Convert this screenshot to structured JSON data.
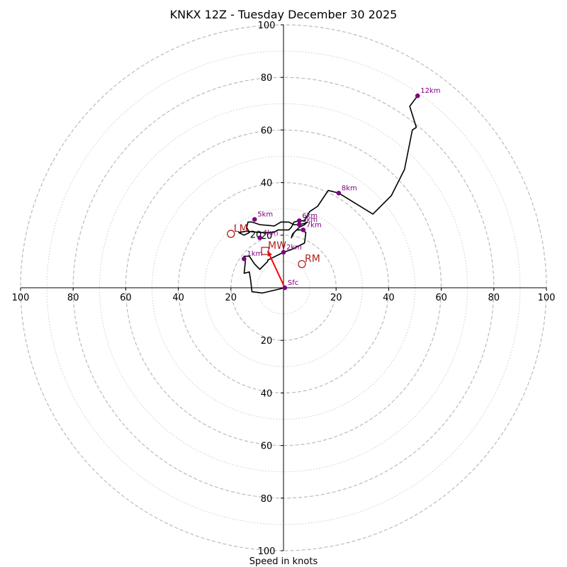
{
  "chart_data": {
    "type": "line",
    "subtype": "hodograph",
    "title": "KNKX 12Z - Tuesday December 30 2025",
    "xlabel": "Speed in knots",
    "ylabel": "",
    "xlim": [
      -100,
      100
    ],
    "ylim": [
      -100,
      100
    ],
    "axis_ticks": [
      100,
      80,
      60,
      40,
      20,
      0,
      20,
      40,
      60,
      80,
      100
    ],
    "rings": {
      "dashed": [
        20,
        40,
        60,
        80,
        100
      ],
      "dotted": [
        10,
        30,
        50,
        70,
        90
      ]
    },
    "grid": true,
    "series": [
      {
        "type": "line",
        "color": "#000000",
        "points": [
          [
            0.5,
            0
          ],
          [
            -8,
            -2
          ],
          [
            -12,
            -1.5
          ],
          [
            -12.5,
            3
          ],
          [
            -13,
            6
          ],
          [
            -15,
            5.5
          ],
          [
            -14.5,
            10
          ],
          [
            -15,
            12
          ],
          [
            -13,
            12
          ],
          [
            -11,
            9
          ],
          [
            -9,
            7
          ],
          [
            -6,
            10
          ],
          [
            -6,
            10.5
          ],
          [
            -2,
            12.5
          ],
          [
            0,
            13.5
          ],
          [
            3,
            14.5
          ],
          [
            6,
            16
          ],
          [
            8,
            17
          ],
          [
            8.5,
            21
          ],
          [
            7,
            22
          ],
          [
            5,
            22
          ],
          [
            3.5,
            20.5
          ],
          [
            3,
            19
          ],
          [
            4,
            21
          ],
          [
            6,
            23
          ],
          [
            8,
            24
          ],
          [
            9,
            25
          ],
          [
            8,
            24.5
          ],
          [
            6,
            24
          ],
          [
            4,
            24
          ],
          [
            2,
            25
          ],
          [
            -1,
            25
          ],
          [
            -3.5,
            23.5
          ],
          [
            -9,
            24
          ],
          [
            -12,
            25
          ],
          [
            -13.5,
            25
          ],
          [
            -14,
            23
          ],
          [
            -13,
            21
          ],
          [
            -15,
            20
          ],
          [
            -17,
            21
          ],
          [
            -14,
            21.5
          ],
          [
            -9,
            21
          ],
          [
            -4,
            21
          ],
          [
            -2,
            22
          ],
          [
            2,
            22
          ],
          [
            3,
            23
          ],
          [
            4,
            25
          ],
          [
            6,
            25.5
          ],
          [
            8,
            25.5
          ],
          [
            10,
            29
          ],
          [
            13,
            31
          ],
          [
            17,
            37
          ],
          [
            21,
            36
          ],
          [
            34,
            28
          ],
          [
            41,
            35
          ],
          [
            46,
            45
          ],
          [
            49,
            60
          ],
          [
            50.5,
            61
          ],
          [
            48,
            69
          ],
          [
            51,
            73
          ]
        ]
      },
      {
        "type": "arrow",
        "color": "#ff0000",
        "from": [
          0.5,
          0
        ],
        "to": [
          -6,
          14
        ]
      }
    ],
    "height_labels": [
      {
        "label": "Sfc",
        "x": 0.5,
        "y": 0
      },
      {
        "label": "1km",
        "x": -15,
        "y": 11
      },
      {
        "label": "2km",
        "x": 0,
        "y": 13.5
      },
      {
        "label": "3km",
        "x": 6,
        "y": 24
      },
      {
        "label": "4km",
        "x": -9,
        "y": 19
      },
      {
        "label": "5km",
        "x": -11,
        "y": 26
      },
      {
        "label": "6km",
        "x": 6,
        "y": 25.5
      },
      {
        "label": "7km",
        "x": 7.5,
        "y": 22
      },
      {
        "label": "8km",
        "x": 21,
        "y": 36
      },
      {
        "label": "12km",
        "x": 51,
        "y": 73
      }
    ],
    "height_label_color": "#800080",
    "storm_motion": [
      {
        "label": "LM",
        "marker": "circle",
        "x": -20,
        "y": 20.5
      },
      {
        "label": "MW",
        "marker": "square",
        "x": -7,
        "y": 14
      },
      {
        "label": "RM",
        "marker": "circle",
        "x": 7,
        "y": 9
      }
    ],
    "storm_motion_color": "#b22222",
    "inner_ring_label": "20"
  }
}
